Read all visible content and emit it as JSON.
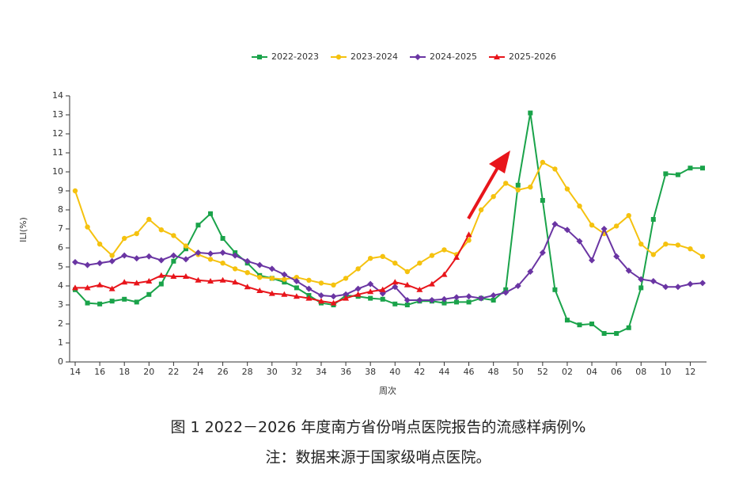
{
  "chart_data": {
    "type": "line",
    "caption": "图 1   2022－2026 年度南方省份哨点医院报告的流感样病例%",
    "note": "注：数据来源于国家级哨点医院。",
    "xlabel": "周次",
    "ylabel": "ILI(%)",
    "categories": [
      "14",
      null,
      "16",
      null,
      "18",
      null,
      "20",
      null,
      "22",
      null,
      "24",
      null,
      "26",
      null,
      "28",
      null,
      "30",
      null,
      "32",
      null,
      "34",
      null,
      "36",
      null,
      "38",
      null,
      "40",
      null,
      "42",
      null,
      "44",
      null,
      "46",
      null,
      "48",
      null,
      "50",
      null,
      "52",
      null,
      "02",
      null,
      "04",
      null,
      "06",
      null,
      "08",
      null,
      "10",
      null,
      "12",
      null
    ],
    "ylim": [
      0,
      14
    ],
    "yticks": [
      0,
      1,
      2,
      3,
      4,
      5,
      6,
      7,
      8,
      9,
      10,
      11,
      12,
      13,
      14
    ],
    "legend": "top",
    "series": [
      {
        "name": "2022-2023",
        "color": "#1aa34a",
        "marker": "square",
        "values": [
          3.8,
          3.1,
          3.05,
          3.2,
          3.3,
          3.15,
          3.55,
          4.1,
          5.3,
          5.95,
          7.2,
          7.8,
          6.5,
          5.75,
          5.2,
          4.55,
          4.4,
          4.2,
          3.9,
          3.5,
          3.1,
          3.0,
          3.5,
          3.45,
          3.35,
          3.3,
          3.05,
          3.0,
          3.2,
          3.2,
          3.1,
          3.15,
          3.15,
          3.35,
          3.25,
          3.8,
          9.3,
          13.1,
          8.5,
          3.8,
          2.2,
          1.95,
          2.0,
          1.5,
          1.5,
          1.8,
          3.9,
          7.5,
          9.9,
          9.85,
          10.2,
          10.2
        ]
      },
      {
        "name": "2023-2024",
        "color": "#f5c20f",
        "marker": "circle",
        "values": [
          9.0,
          7.1,
          6.2,
          5.6,
          6.5,
          6.75,
          7.5,
          6.95,
          6.65,
          6.1,
          5.65,
          5.4,
          5.2,
          4.9,
          4.7,
          4.45,
          4.4,
          4.35,
          4.45,
          4.3,
          4.15,
          4.05,
          4.4,
          4.9,
          5.45,
          5.55,
          5.2,
          4.75,
          5.2,
          5.6,
          5.9,
          5.65,
          6.4,
          8.0,
          8.7,
          9.4,
          9.05,
          9.2,
          10.5,
          10.15,
          9.1,
          8.2,
          7.2,
          6.75,
          7.15,
          7.7,
          6.2,
          5.65,
          6.2,
          6.15,
          5.95,
          5.55
        ]
      },
      {
        "name": "2024-2025",
        "color": "#6a35a3",
        "marker": "diamond",
        "values": [
          5.25,
          5.1,
          5.2,
          5.3,
          5.6,
          5.45,
          5.55,
          5.35,
          5.6,
          5.4,
          5.75,
          5.7,
          5.75,
          5.6,
          5.3,
          5.1,
          4.9,
          4.6,
          4.25,
          3.85,
          3.5,
          3.45,
          3.55,
          3.85,
          4.1,
          3.6,
          3.95,
          3.25,
          3.25,
          3.25,
          3.3,
          3.4,
          3.45,
          3.35,
          3.5,
          3.65,
          4.0,
          4.75,
          5.75,
          7.25,
          6.95,
          6.35,
          5.35,
          7.0,
          5.55,
          4.8,
          4.35,
          4.25,
          3.95,
          3.95,
          4.1,
          4.15
        ]
      },
      {
        "name": "2025-2026",
        "color": "#e8151b",
        "marker": "triangle",
        "values": [
          3.9,
          3.9,
          4.05,
          3.85,
          4.2,
          4.15,
          4.25,
          4.55,
          4.5,
          4.5,
          4.3,
          4.25,
          4.3,
          4.2,
          3.95,
          3.75,
          3.6,
          3.55,
          3.45,
          3.35,
          3.2,
          3.1,
          3.35,
          3.55,
          3.7,
          3.8,
          4.2,
          4.05,
          3.8,
          4.1,
          4.6,
          5.5,
          6.7,
          null,
          null,
          null,
          null,
          null,
          null,
          null,
          null,
          null,
          null,
          null,
          null,
          null,
          null,
          null,
          null,
          null,
          null,
          null
        ]
      }
    ]
  }
}
